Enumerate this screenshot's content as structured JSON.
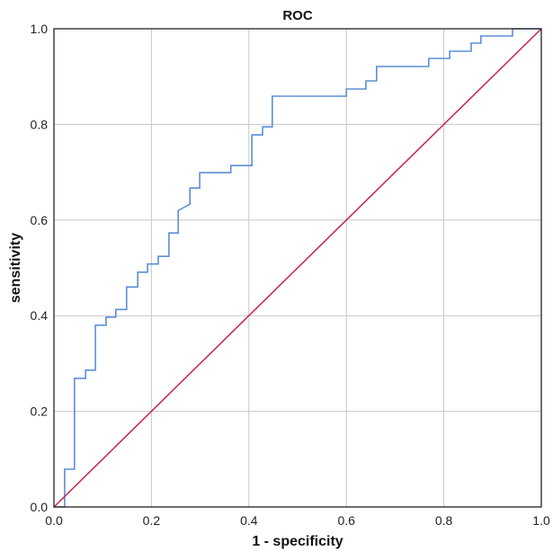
{
  "chart_data": {
    "type": "line",
    "title": "ROC",
    "xlabel": "1 - specificity",
    "ylabel": "sensitivity",
    "xlim": [
      0,
      1
    ],
    "ylim": [
      0,
      1
    ],
    "xticks": [
      "0.0",
      "0.2",
      "0.4",
      "0.6",
      "0.8",
      "1.0"
    ],
    "yticks": [
      "0.0",
      "0.2",
      "0.4",
      "0.6",
      "0.8",
      "1.0"
    ],
    "grid": true,
    "series": [
      {
        "name": "ROC curve",
        "color": "#5b8fd6",
        "step": true,
        "points": [
          [
            0.0,
            0.0
          ],
          [
            0.022,
            0.0
          ],
          [
            0.022,
            0.079
          ],
          [
            0.042,
            0.079
          ],
          [
            0.042,
            0.269
          ],
          [
            0.065,
            0.269
          ],
          [
            0.065,
            0.286
          ],
          [
            0.085,
            0.286
          ],
          [
            0.085,
            0.38
          ],
          [
            0.107,
            0.38
          ],
          [
            0.107,
            0.397
          ],
          [
            0.127,
            0.397
          ],
          [
            0.127,
            0.413
          ],
          [
            0.149,
            0.413
          ],
          [
            0.149,
            0.46
          ],
          [
            0.172,
            0.46
          ],
          [
            0.172,
            0.491
          ],
          [
            0.192,
            0.491
          ],
          [
            0.192,
            0.508
          ],
          [
            0.214,
            0.508
          ],
          [
            0.214,
            0.524
          ],
          [
            0.236,
            0.524
          ],
          [
            0.236,
            0.573
          ],
          [
            0.255,
            0.573
          ],
          [
            0.255,
            0.62
          ],
          [
            0.279,
            0.633
          ],
          [
            0.279,
            0.667
          ],
          [
            0.299,
            0.667
          ],
          [
            0.299,
            0.699
          ],
          [
            0.363,
            0.699
          ],
          [
            0.363,
            0.714
          ],
          [
            0.406,
            0.714
          ],
          [
            0.406,
            0.778
          ],
          [
            0.428,
            0.778
          ],
          [
            0.428,
            0.795
          ],
          [
            0.448,
            0.795
          ],
          [
            0.448,
            0.859
          ],
          [
            0.6,
            0.859
          ],
          [
            0.6,
            0.874
          ],
          [
            0.64,
            0.874
          ],
          [
            0.64,
            0.891
          ],
          [
            0.662,
            0.891
          ],
          [
            0.662,
            0.921
          ],
          [
            0.769,
            0.921
          ],
          [
            0.769,
            0.938
          ],
          [
            0.812,
            0.938
          ],
          [
            0.812,
            0.953
          ],
          [
            0.856,
            0.953
          ],
          [
            0.856,
            0.97
          ],
          [
            0.876,
            0.97
          ],
          [
            0.876,
            0.985
          ],
          [
            0.941,
            0.985
          ],
          [
            0.941,
            1.0
          ],
          [
            1.0,
            1.0
          ]
        ]
      },
      {
        "name": "Reference line",
        "color": "#c8234a",
        "step": false,
        "points": [
          [
            0.0,
            0.0
          ],
          [
            1.0,
            1.0
          ]
        ]
      }
    ],
    "legend": "none"
  }
}
